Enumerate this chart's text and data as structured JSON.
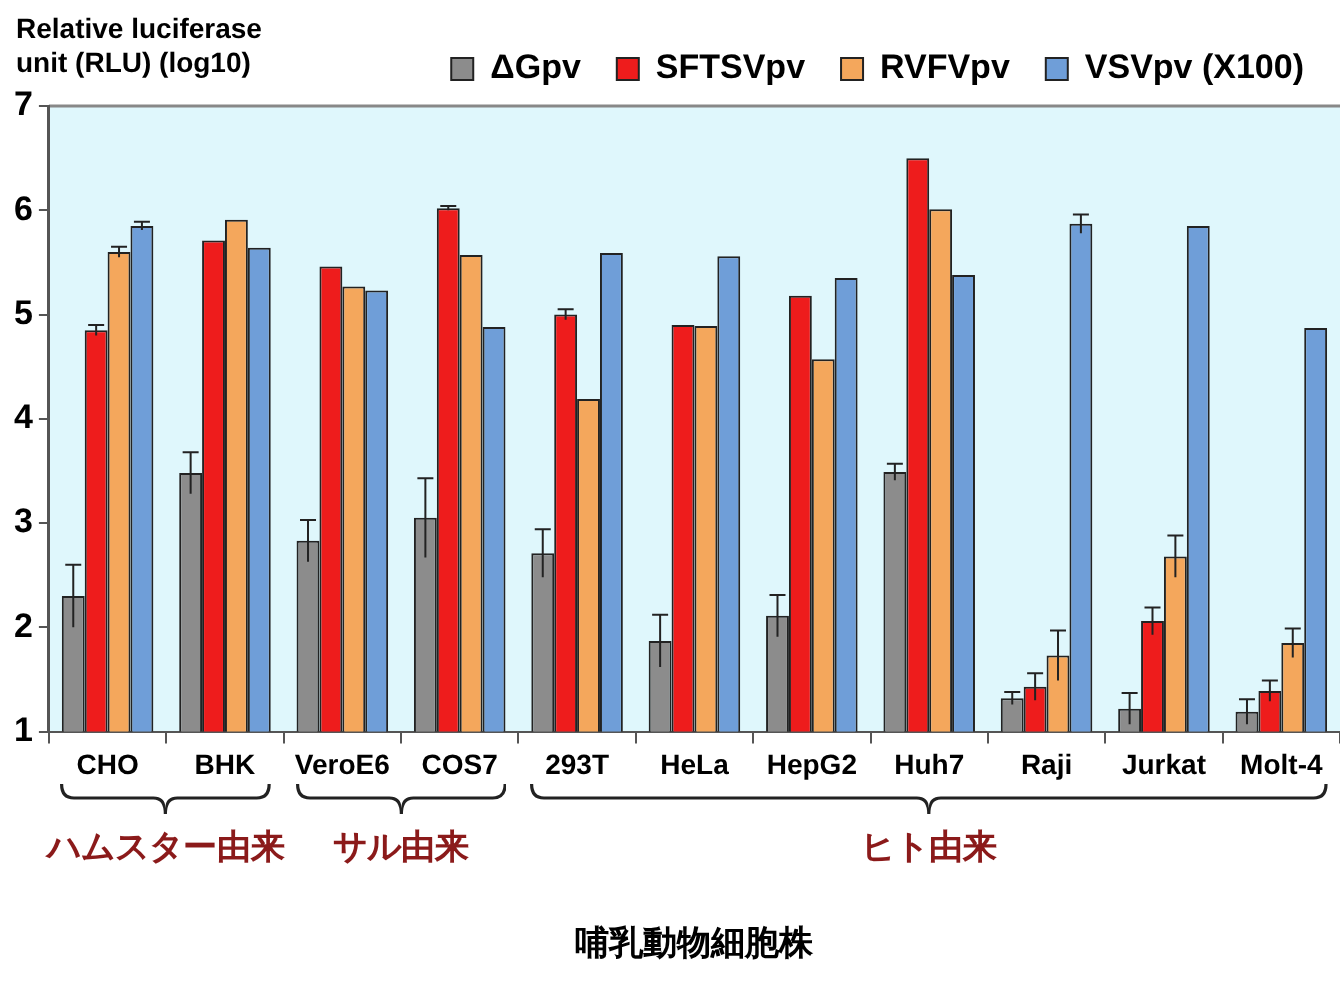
{
  "chart_data": {
    "type": "bar",
    "ylabel": "Relative luciferase unit (RLU) (log10)",
    "xlabel": "哺乳動物細胞株",
    "categories": [
      "CHO",
      "BHK",
      "VeroE6",
      "COS7",
      "293T",
      "HeLa",
      "HepG2",
      "Huh7",
      "Raji",
      "Jurkat",
      "Molt-4"
    ],
    "series": [
      {
        "name": "ΔGpv",
        "color": "#8c8c8c",
        "values": [
          2.3,
          3.48,
          2.83,
          3.05,
          2.71,
          1.87,
          2.11,
          3.49,
          1.32,
          1.22,
          1.19
        ],
        "errors": [
          0.3,
          0.2,
          0.2,
          0.38,
          0.23,
          0.25,
          0.2,
          0.08,
          0.06,
          0.15,
          0.12
        ]
      },
      {
        "name": "SFTSVpv",
        "color": "#ee1c1c",
        "values": [
          4.85,
          5.71,
          5.46,
          6.02,
          5.0,
          4.9,
          5.18,
          6.5,
          1.43,
          2.06,
          1.39
        ],
        "errors": [
          0.05,
          null,
          null,
          0.02,
          0.05,
          null,
          null,
          null,
          0.13,
          0.13,
          0.1
        ]
      },
      {
        "name": "RVFVpv",
        "color": "#f4a75c",
        "values": [
          5.6,
          5.91,
          5.27,
          5.57,
          4.19,
          4.89,
          4.57,
          6.01,
          1.73,
          2.68,
          1.85
        ],
        "errors": [
          0.05,
          null,
          null,
          null,
          null,
          null,
          null,
          null,
          0.24,
          0.2,
          0.14
        ]
      },
      {
        "name": "VSVpv (X100)",
        "color": "#6f9ed8",
        "values": [
          5.85,
          5.64,
          5.23,
          4.88,
          5.59,
          5.56,
          5.35,
          5.38,
          5.87,
          5.85,
          4.87
        ],
        "errors": [
          0.04,
          null,
          null,
          null,
          null,
          null,
          null,
          null,
          0.09,
          null,
          null
        ]
      }
    ],
    "ylim": [
      1,
      7
    ],
    "yticks": [
      1,
      2,
      3,
      4,
      5,
      6,
      7
    ],
    "grid": false,
    "legend": "top right",
    "annotations": [
      "ハムスター由来",
      "サル由来",
      "ヒト由来"
    ]
  }
}
